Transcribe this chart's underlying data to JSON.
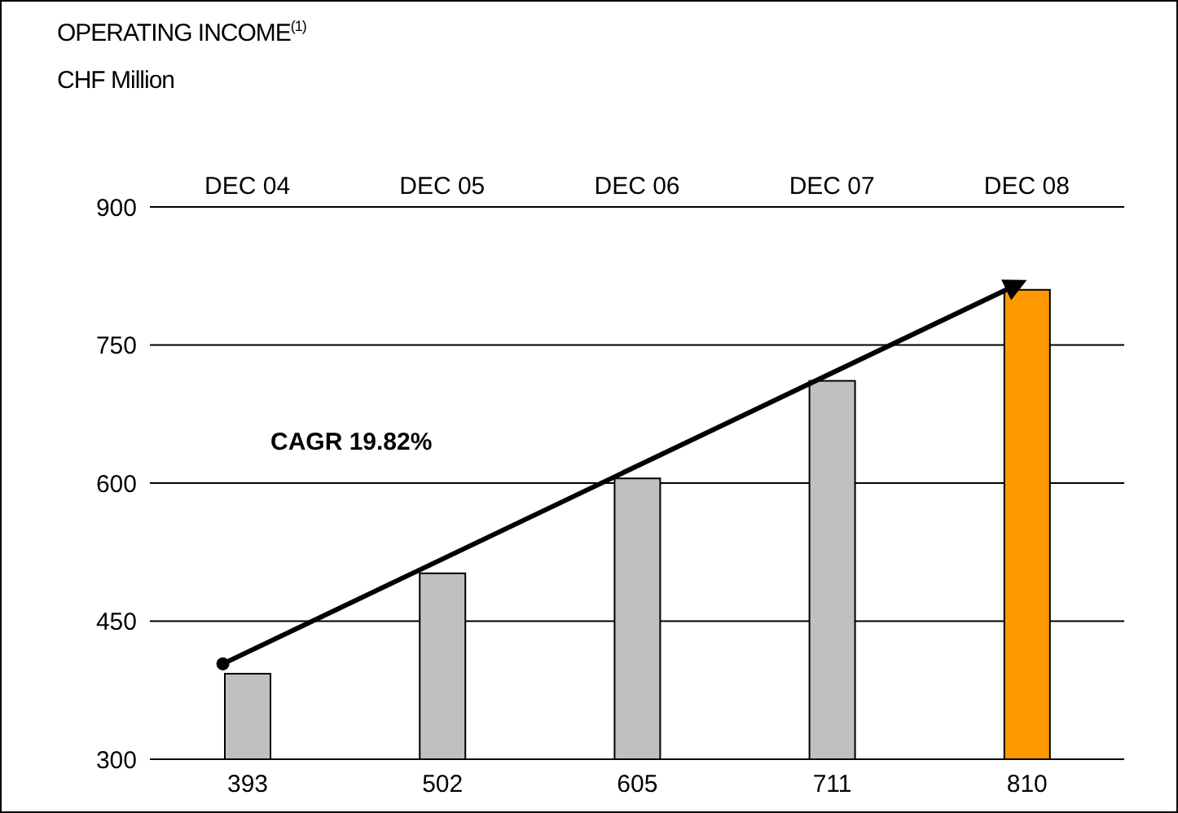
{
  "chart_data": {
    "type": "bar",
    "title": "OPERATING INCOME$^{(1)}$",
    "subtitle": "CHF Million",
    "categories": [
      "DEC 04",
      "DEC 05",
      "DEC 06",
      "DEC 07",
      "DEC 08"
    ],
    "values": [
      393,
      502,
      605,
      711,
      810
    ],
    "colors": [
      "#c0c0c0",
      "#c0c0c0",
      "#c0c0c0",
      "#c0c0c0",
      "#ff9900"
    ],
    "ylim": [
      300,
      900
    ],
    "yticks": [
      300,
      450,
      600,
      750,
      900
    ],
    "grid": "y",
    "data_labels": true,
    "annotations": [
      "CAGR 19.82%"
    ]
  }
}
